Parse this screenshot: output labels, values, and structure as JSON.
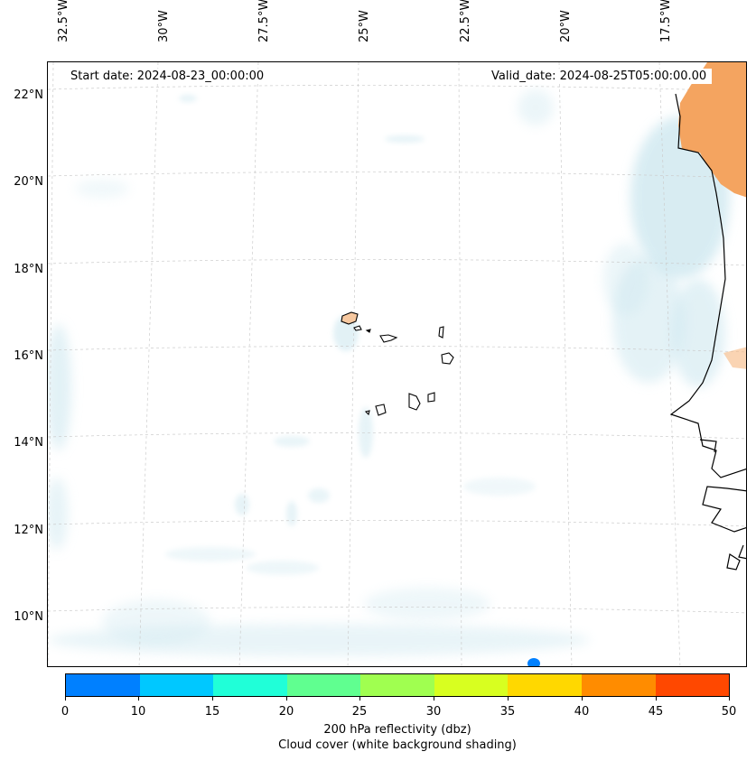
{
  "map": {
    "start_date": "Start date: 2024-08-23_00:00:00",
    "valid_date": "Valid_date: 2024-08-25T05:00:00.00",
    "lon_labels": [
      "32.5°W",
      "30°W",
      "27.5°W",
      "25°W",
      "22.5°W",
      "20°W",
      "17.5°W"
    ],
    "lat_labels": [
      "22°N",
      "20°N",
      "18°N",
      "16°N",
      "14°N",
      "12°N",
      "10°N"
    ],
    "colors": {
      "land_orange": "#f4a460",
      "cloud_blue": "#cfe8f0",
      "coast": "#000000"
    }
  },
  "colorbar": {
    "ticks": [
      "0",
      "10",
      "15",
      "20",
      "25",
      "30",
      "35",
      "40",
      "45",
      "50"
    ],
    "colors": [
      "#0080ff",
      "#00c8ff",
      "#20ffd8",
      "#60ff90",
      "#a0ff50",
      "#d8ff20",
      "#ffd800",
      "#ff8c00",
      "#ff4800"
    ],
    "label": "200 hPa reflectivity (dbz)",
    "sublabel": "Cloud cover (white background shading)"
  }
}
